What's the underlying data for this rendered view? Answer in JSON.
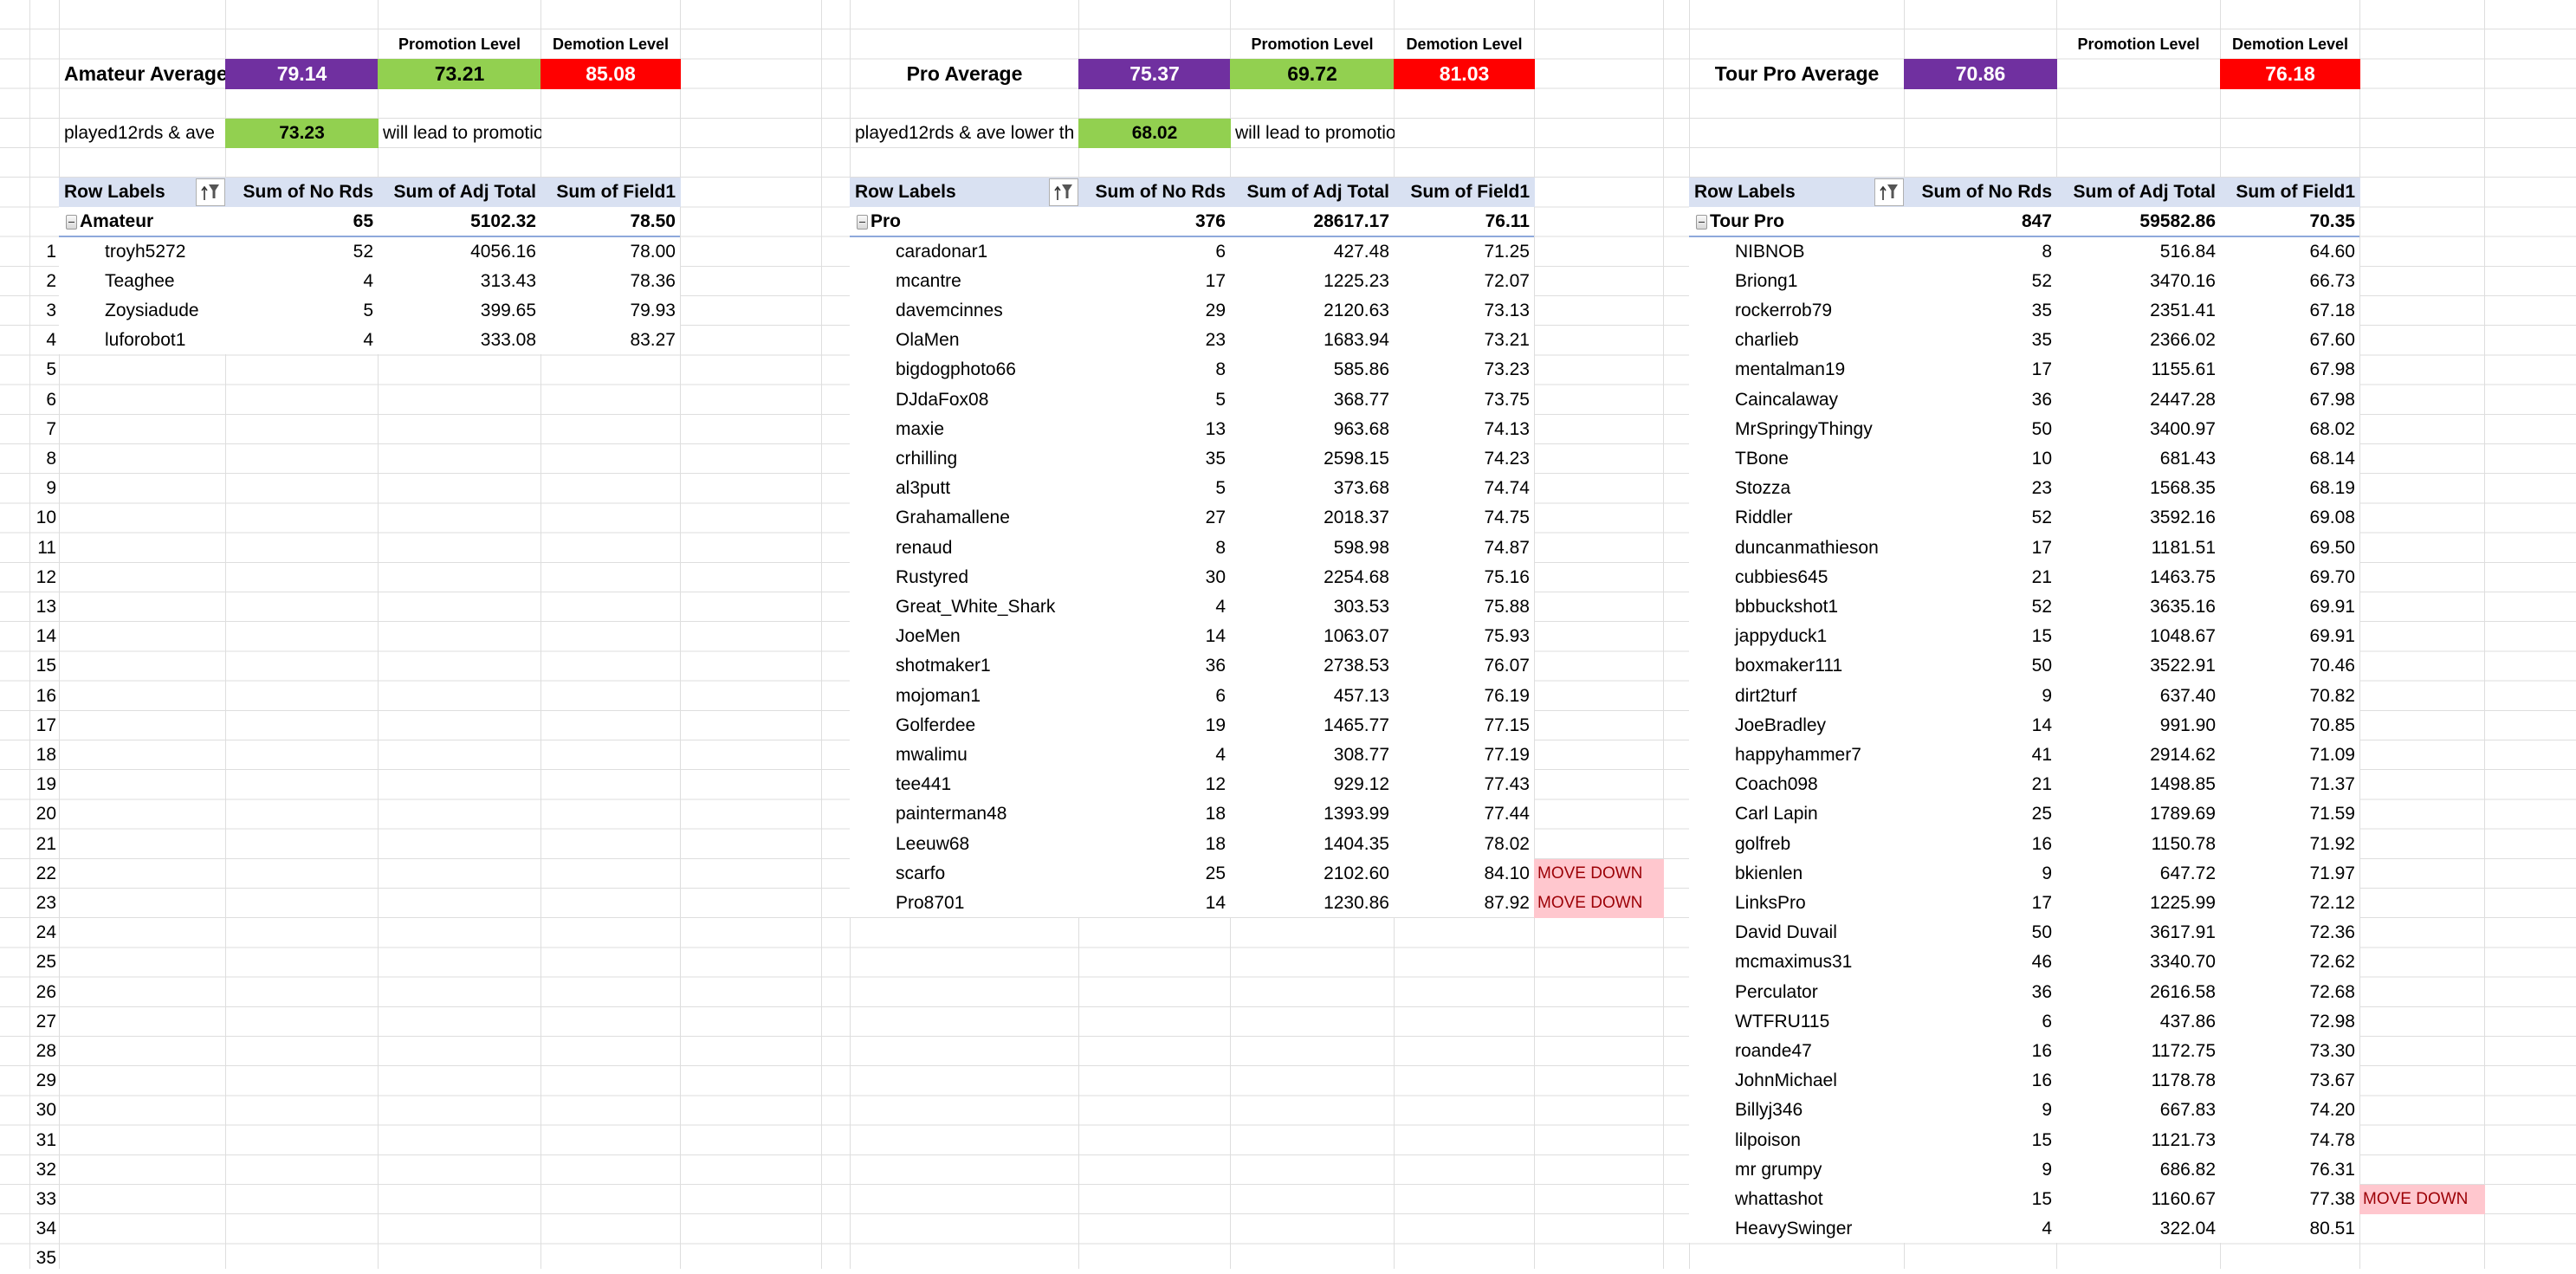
{
  "colors": {
    "average": "#7030A0",
    "promotion": "#92D050",
    "demotion": "#FF0000",
    "pivot_header": "#D9E1F2",
    "move_down_fill": "#FFC7CE",
    "move_down_text": "#9C0006"
  },
  "row_numbers": [
    "1",
    "2",
    "3",
    "4",
    "5",
    "6",
    "7",
    "8",
    "9",
    "10",
    "11",
    "12",
    "13",
    "14",
    "15",
    "16",
    "17",
    "18",
    "19",
    "20",
    "21",
    "22",
    "23",
    "24",
    "25",
    "26",
    "27",
    "28",
    "29",
    "30",
    "31",
    "32",
    "33",
    "34",
    "35"
  ],
  "blocks": [
    {
      "average_label": "Amateur Average",
      "average": "79.14",
      "promotion_header": "Promotion Level",
      "promotion_level": "73.21",
      "demotion_header": "Demotion Level",
      "demotion_level": "85.08",
      "played_label": "played12rds & ave",
      "played_value": "73.23",
      "played_suffix": "will lead to promotion",
      "pivot": {
        "headers": [
          "Row Labels",
          "Sum of No Rds",
          "Sum of Adj Total",
          "Sum of Field1"
        ],
        "group": [
          "Amateur",
          "65",
          "5102.32",
          "78.50"
        ],
        "rows": [
          [
            "troyh5272",
            "52",
            "4056.16",
            "78.00",
            ""
          ],
          [
            "Teaghee",
            "4",
            "313.43",
            "78.36",
            ""
          ],
          [
            "Zoysiadude",
            "5",
            "399.65",
            "79.93",
            ""
          ],
          [
            "luforobot1",
            "4",
            "333.08",
            "83.27",
            ""
          ]
        ]
      }
    },
    {
      "average_label": "Pro Average",
      "average": "75.37",
      "promotion_header": "Promotion Level",
      "promotion_level": "69.72",
      "demotion_header": "Demotion Level",
      "demotion_level": "81.03",
      "played_label": "played12rds & ave lower th",
      "played_value": "68.02",
      "played_suffix": "will lead to promotion",
      "pivot": {
        "headers": [
          "Row Labels",
          "Sum of No Rds",
          "Sum of Adj Total",
          "Sum of Field1"
        ],
        "group": [
          "Pro",
          "376",
          "28617.17",
          "76.11"
        ],
        "rows": [
          [
            "caradonar1",
            "6",
            "427.48",
            "71.25",
            ""
          ],
          [
            "mcantre",
            "17",
            "1225.23",
            "72.07",
            ""
          ],
          [
            "davemcinnes",
            "29",
            "2120.63",
            "73.13",
            ""
          ],
          [
            "OlaMen",
            "23",
            "1683.94",
            "73.21",
            ""
          ],
          [
            "bigdogphoto66",
            "8",
            "585.86",
            "73.23",
            ""
          ],
          [
            "DJdaFox08",
            "5",
            "368.77",
            "73.75",
            ""
          ],
          [
            "maxie",
            "13",
            "963.68",
            "74.13",
            ""
          ],
          [
            "crhilling",
            "35",
            "2598.15",
            "74.23",
            ""
          ],
          [
            "al3putt",
            "5",
            "373.68",
            "74.74",
            ""
          ],
          [
            "Grahamallene",
            "27",
            "2018.37",
            "74.75",
            ""
          ],
          [
            "renaud",
            "8",
            "598.98",
            "74.87",
            ""
          ],
          [
            "Rustyred",
            "30",
            "2254.68",
            "75.16",
            ""
          ],
          [
            "Great_White_Shark",
            "4",
            "303.53",
            "75.88",
            ""
          ],
          [
            "JoeMen",
            "14",
            "1063.07",
            "75.93",
            ""
          ],
          [
            "shotmaker1",
            "36",
            "2738.53",
            "76.07",
            ""
          ],
          [
            "mojoman1",
            "6",
            "457.13",
            "76.19",
            ""
          ],
          [
            "Golferdee",
            "19",
            "1465.77",
            "77.15",
            ""
          ],
          [
            "mwalimu",
            "4",
            "308.77",
            "77.19",
            ""
          ],
          [
            "tee441",
            "12",
            "929.12",
            "77.43",
            ""
          ],
          [
            "painterman48",
            "18",
            "1393.99",
            "77.44",
            ""
          ],
          [
            "Leeuw68",
            "18",
            "1404.35",
            "78.02",
            ""
          ],
          [
            "scarfo",
            "25",
            "2102.60",
            "84.10",
            "MOVE DOWN"
          ],
          [
            "Pro8701",
            "14",
            "1230.86",
            "87.92",
            "MOVE DOWN"
          ]
        ]
      }
    },
    {
      "average_label": "Tour Pro Average",
      "average": "70.86",
      "promotion_header": "Promotion Level",
      "promotion_level": "",
      "demotion_header": "Demotion Level",
      "demotion_level": "76.18",
      "pivot": {
        "headers": [
          "Row Labels",
          "Sum of No Rds",
          "Sum of Adj Total",
          "Sum of Field1"
        ],
        "group": [
          "Tour Pro",
          "847",
          "59582.86",
          "70.35"
        ],
        "rows": [
          [
            "NIBNOB",
            "8",
            "516.84",
            "64.60",
            ""
          ],
          [
            "Briong1",
            "52",
            "3470.16",
            "66.73",
            ""
          ],
          [
            "rockerrob79",
            "35",
            "2351.41",
            "67.18",
            ""
          ],
          [
            "charlieb",
            "35",
            "2366.02",
            "67.60",
            ""
          ],
          [
            "mentalman19",
            "17",
            "1155.61",
            "67.98",
            ""
          ],
          [
            "Caincalaway",
            "36",
            "2447.28",
            "67.98",
            ""
          ],
          [
            "MrSpringyThingy",
            "50",
            "3400.97",
            "68.02",
            ""
          ],
          [
            "TBone",
            "10",
            "681.43",
            "68.14",
            ""
          ],
          [
            "Stozza",
            "23",
            "1568.35",
            "68.19",
            ""
          ],
          [
            "Riddler",
            "52",
            "3592.16",
            "69.08",
            ""
          ],
          [
            "duncanmathieson",
            "17",
            "1181.51",
            "69.50",
            ""
          ],
          [
            "cubbies645",
            "21",
            "1463.75",
            "69.70",
            ""
          ],
          [
            "bbbuckshot1",
            "52",
            "3635.16",
            "69.91",
            ""
          ],
          [
            "jappyduck1",
            "15",
            "1048.67",
            "69.91",
            ""
          ],
          [
            "boxmaker111",
            "50",
            "3522.91",
            "70.46",
            ""
          ],
          [
            "dirt2turf",
            "9",
            "637.40",
            "70.82",
            ""
          ],
          [
            "JoeBradley",
            "14",
            "991.90",
            "70.85",
            ""
          ],
          [
            "happyhammer7",
            "41",
            "2914.62",
            "71.09",
            ""
          ],
          [
            "Coach098",
            "21",
            "1498.85",
            "71.37",
            ""
          ],
          [
            "Carl Lapin",
            "25",
            "1789.69",
            "71.59",
            ""
          ],
          [
            "golfreb",
            "16",
            "1150.78",
            "71.92",
            ""
          ],
          [
            "bkienlen",
            "9",
            "647.72",
            "71.97",
            ""
          ],
          [
            "LinksPro",
            "17",
            "1225.99",
            "72.12",
            ""
          ],
          [
            "David Duvail",
            "50",
            "3617.91",
            "72.36",
            ""
          ],
          [
            "mcmaximus31",
            "46",
            "3340.70",
            "72.62",
            ""
          ],
          [
            "Perculator",
            "36",
            "2616.58",
            "72.68",
            ""
          ],
          [
            "WTFRU115",
            "6",
            "437.86",
            "72.98",
            ""
          ],
          [
            "roande47",
            "16",
            "1172.75",
            "73.30",
            ""
          ],
          [
            "JohnMichael",
            "16",
            "1178.78",
            "73.67",
            ""
          ],
          [
            "Billyj346",
            "9",
            "667.83",
            "74.20",
            ""
          ],
          [
            "lilpoison",
            "15",
            "1121.73",
            "74.78",
            ""
          ],
          [
            "mr grumpy",
            "9",
            "686.82",
            "76.31",
            ""
          ],
          [
            "whattashot",
            "15",
            "1160.67",
            "77.38",
            "MOVE DOWN"
          ],
          [
            "HeavySwinger",
            "4",
            "322.04",
            "80.51",
            ""
          ]
        ]
      }
    }
  ]
}
